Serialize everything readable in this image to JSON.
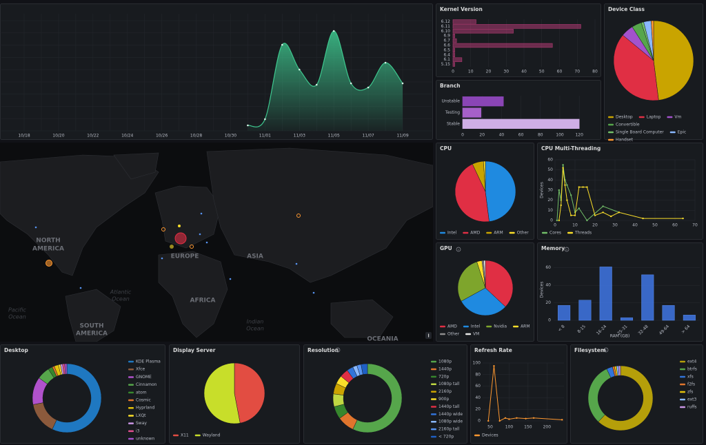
{
  "chart_data": [
    {
      "type": "area",
      "color": "#3ec88f",
      "categories": [
        "10/18",
        null,
        "10/20",
        null,
        "10/22",
        null,
        "10/24",
        null,
        "10/26",
        null,
        "10/28",
        null,
        "10/30",
        null,
        "11/01",
        null,
        "11/03",
        null,
        "11/05",
        null,
        "11/07",
        null,
        "11/09"
      ],
      "values": [
        null,
        null,
        null,
        null,
        null,
        null,
        null,
        null,
        null,
        null,
        null,
        null,
        null,
        8,
        17,
        125,
        89,
        67,
        145,
        69,
        63,
        99,
        69
      ],
      "ylim": [
        0,
        160
      ]
    },
    {
      "type": "hbar",
      "title": "Kernel Version",
      "color": "#b03a72",
      "categories": [
        "6.12",
        "6.11",
        "6.10",
        "6.9",
        "6.7",
        "6.6",
        "6.5",
        "6.4",
        "6.1",
        "5.15"
      ],
      "values": [
        13,
        72,
        34,
        1,
        2,
        56,
        1,
        1,
        5,
        1
      ],
      "xlim": [
        0,
        80
      ],
      "xticks": [
        0,
        10,
        20,
        30,
        40,
        50,
        60,
        70,
        80
      ]
    },
    {
      "type": "hbar",
      "title": "Branch",
      "colors": [
        "#8a45b5",
        "#a660c9",
        "#cfaee6"
      ],
      "categories": [
        "Unstable",
        "Testing",
        "Stable"
      ],
      "values": [
        42,
        19,
        120
      ],
      "xlim": [
        0,
        122
      ],
      "xticks": [
        0,
        20,
        40,
        60,
        80,
        100,
        120
      ]
    },
    {
      "type": "pie",
      "title": "Device Class",
      "labels": [
        "Desktop",
        "Laptop",
        "Vm",
        "Convertible",
        "Single Board Computer",
        "Epic",
        "Handset"
      ],
      "values": [
        48,
        38,
        5,
        4,
        1,
        3,
        1
      ],
      "colors": [
        "#c9a400",
        "#e02f44",
        "#a352cc",
        "#56a64b",
        "#73bf69",
        "#8ab8ff",
        "#ff9830"
      ]
    },
    {
      "type": "map",
      "labels": [
        "NORTH",
        "AMERICA",
        "EUROPE",
        "ASIA",
        "AFRICA",
        "SOUTH",
        "AMERICA",
        "OCEANIA",
        "Atlantic",
        "Ocean",
        "Pacific",
        "Ocean",
        "Indian",
        "Ocean"
      ]
    },
    {
      "type": "pie",
      "title": "CPU",
      "labels": [
        "Intel",
        "AMD",
        "ARM",
        "Other"
      ],
      "values": [
        48,
        45,
        6,
        1
      ],
      "colors": [
        "#1f8ae0",
        "#e02f44",
        "#c9a400",
        "#fade2a"
      ]
    },
    {
      "type": "line",
      "title": "CPU Multi-Threading",
      "ylabel": "Devices",
      "xlim": [
        0,
        70
      ],
      "xticks": [
        0,
        10,
        20,
        30,
        40,
        50,
        60,
        70
      ],
      "ylim": [
        0,
        60
      ],
      "yticks": [
        0,
        10,
        20,
        30,
        40,
        50,
        60
      ],
      "grid": true,
      "series": [
        {
          "name": "Cores",
          "color": "#73bf69",
          "x": [
            1,
            2,
            3,
            4,
            5,
            6,
            8,
            10,
            12,
            16,
            24,
            32
          ],
          "values": [
            0,
            30,
            20,
            55,
            40,
            35,
            25,
            8,
            12,
            0,
            14,
            8
          ]
        },
        {
          "name": "Threads",
          "color": "#fade2a",
          "x": [
            2,
            3,
            4,
            5,
            6,
            8,
            10,
            12,
            14,
            16,
            20,
            24,
            28,
            32,
            44,
            64
          ],
          "values": [
            0,
            15,
            52,
            35,
            20,
            5,
            5,
            33,
            33,
            33,
            5,
            8,
            4,
            8,
            2,
            2
          ]
        }
      ]
    },
    {
      "type": "pie",
      "title": "GPU",
      "labels": [
        "AMD",
        "Intel",
        "Nvidia",
        "ARM",
        "Other",
        "VM"
      ],
      "values": [
        37,
        30,
        28,
        3,
        1,
        1
      ],
      "colors": [
        "#e02f44",
        "#1f8ae0",
        "#7ea52c",
        "#fade2a",
        "#8e8e8e",
        "#e8e8e8"
      ]
    },
    {
      "type": "bar",
      "title": "Memory",
      "color": "#3d71d9",
      "xlabel": "RAM (GB)",
      "ylabel": "Devices",
      "categories": [
        "< 8",
        "8-15",
        "16-24",
        "25-31",
        "32-48",
        "49-64",
        "> 64"
      ],
      "values": [
        17,
        23,
        61,
        3,
        52,
        17,
        6
      ],
      "ylim": [
        0,
        70
      ],
      "yticks": [
        0,
        20,
        40,
        60
      ],
      "grid": true
    },
    {
      "type": "donut",
      "title": "Desktop",
      "labels": [
        "KDE Plasma",
        "Xfce",
        "GNOME",
        "Cinnamon",
        "atom",
        "Cosmic",
        "Hyprland",
        "LXQt",
        "Sway",
        "i3",
        "unknown"
      ],
      "values": [
        57,
        15,
        13,
        6,
        2,
        1,
        2,
        1,
        1,
        1,
        1
      ],
      "colors": [
        "#1f78c1",
        "#8c5a3c",
        "#b152cc",
        "#56a64b",
        "#37872d",
        "#e0752d",
        "#e5c20a",
        "#fade2a",
        "#ca95e5",
        "#e04f8e",
        "#a352cc"
      ]
    },
    {
      "type": "pie",
      "title": "Display Server",
      "labels": [
        "X11",
        "Wayland"
      ],
      "values": [
        47,
        53
      ],
      "colors": [
        "#e24d42",
        "#c8de2a"
      ]
    },
    {
      "type": "donut",
      "title": "Resolution",
      "labels": [
        "1080p",
        "1440p",
        "720p",
        "1080p tall",
        "2160p",
        "900p",
        "1440p tall",
        "1440p wide",
        "1080p wide",
        "2160p tall",
        "< 720p"
      ],
      "values": [
        57,
        8,
        6,
        6,
        5,
        4,
        4,
        3,
        2,
        2,
        3
      ],
      "colors": [
        "#56a64b",
        "#e0752d",
        "#37872d",
        "#c0d842",
        "#cca300",
        "#fade2a",
        "#e02f44",
        "#3274d9",
        "#8ab8ff",
        "#5794f2",
        "#1f60c4"
      ]
    },
    {
      "type": "line",
      "title": "Refresh Rate",
      "xlim": [
        30,
        245
      ],
      "xticks": [
        50,
        100,
        150,
        200
      ],
      "ylim": [
        0,
        100
      ],
      "yticks": [
        0,
        20,
        40,
        60,
        80,
        100
      ],
      "grid": true,
      "series": [
        {
          "name": "Devices",
          "color": "#ff9830",
          "x": [
            45,
            60,
            75,
            90,
            100,
            120,
            144,
            165,
            240
          ],
          "values": [
            0,
            95,
            0,
            5,
            3,
            5,
            4,
            5,
            2
          ]
        }
      ]
    },
    {
      "type": "donut",
      "title": "Filesystem",
      "labels": [
        "ext4",
        "btrfs",
        "xfs",
        "f2fs",
        "zfs",
        "ext3",
        "ruffs"
      ],
      "values": [
        62,
        31,
        3,
        1,
        1,
        1,
        1
      ],
      "colors": [
        "#b59f0a",
        "#56a64b",
        "#3274d9",
        "#e0752d",
        "#e5c20a",
        "#8ab8ff",
        "#ca95e5"
      ]
    }
  ]
}
